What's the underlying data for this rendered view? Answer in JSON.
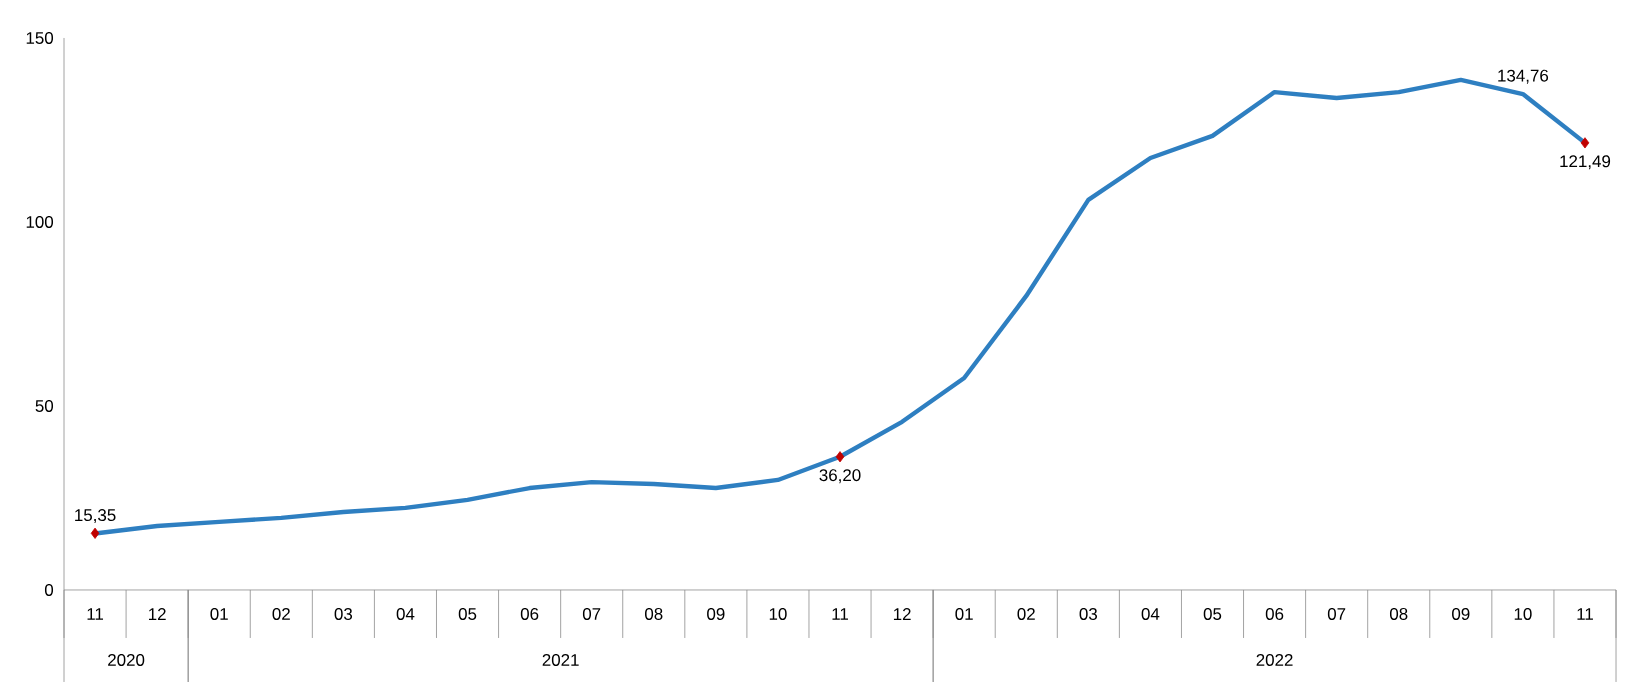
{
  "chart_data": {
    "type": "line",
    "categories": [
      "11",
      "12",
      "01",
      "02",
      "03",
      "04",
      "05",
      "06",
      "07",
      "08",
      "09",
      "10",
      "11",
      "12",
      "01",
      "02",
      "03",
      "04",
      "05",
      "06",
      "07",
      "08",
      "09",
      "10",
      "11"
    ],
    "annotations": [
      "2020",
      "2021",
      "2022"
    ],
    "ylim": [
      0,
      150
    ],
    "yticks": [
      0,
      50,
      100,
      150
    ],
    "series": [
      {
        "color": "#2e7fc1",
        "marker": "none",
        "values": [
          15.35,
          17.4,
          18.5,
          19.6,
          21.2,
          22.3,
          24.5,
          27.7,
          29.3,
          28.8,
          27.7,
          29.9,
          36.2,
          45.7,
          57.6,
          79.9,
          106,
          117.4,
          123.4,
          135.3,
          133.7,
          135.3,
          138.6,
          134.76,
          121.49
        ],
        "value_labels": [
          "15,35",
          null,
          null,
          null,
          null,
          null,
          null,
          null,
          null,
          null,
          null,
          null,
          "36,20",
          null,
          null,
          null,
          null,
          null,
          null,
          null,
          null,
          null,
          null,
          "134,76",
          "121,49"
        ]
      },
      {
        "type": "scatter",
        "color": "#c00000",
        "marker": "diamond",
        "values": [
          15.4,
          null,
          null,
          null,
          null,
          null,
          null,
          null,
          null,
          null,
          null,
          null,
          36.2,
          null,
          null,
          null,
          null,
          null,
          null,
          null,
          null,
          null,
          null,
          null,
          121.5
        ]
      }
    ]
  }
}
